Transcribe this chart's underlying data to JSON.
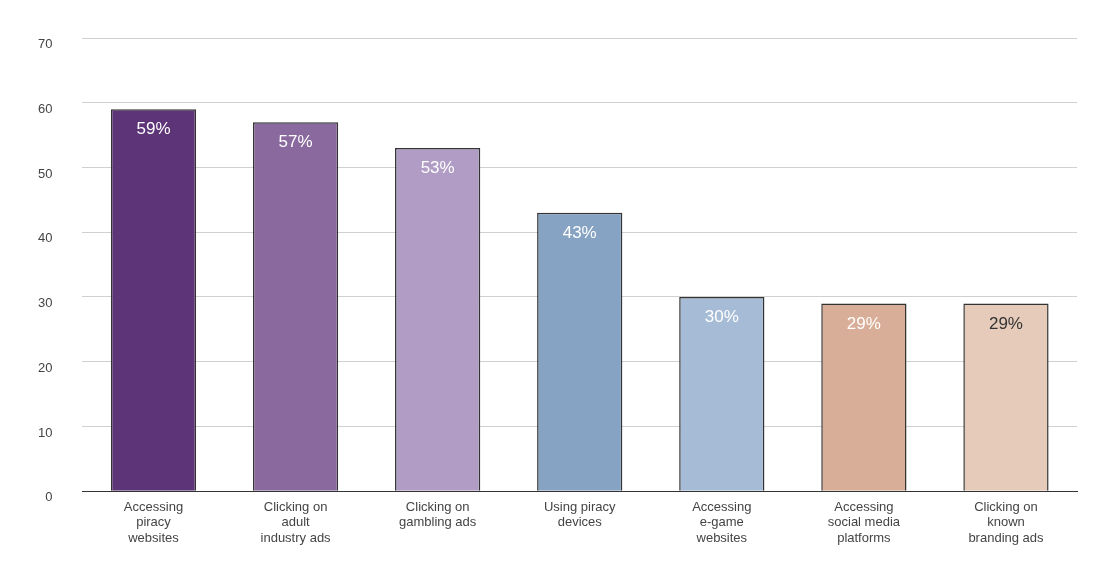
{
  "chart_data": {
    "type": "bar",
    "categories": [
      "Accessing piracy websites",
      "Clicking on adult industry ads",
      "Clicking on gambling ads",
      "Using piracy devices",
      "Accessing e-game websites",
      "Accessing social media platforms",
      "Clicking on known branding ads"
    ],
    "values": [
      59,
      57,
      53,
      43,
      30,
      29,
      29
    ],
    "value_labels": [
      "59%",
      "57%",
      "53%",
      "43%",
      "30%",
      "29%",
      "29%"
    ],
    "colors": [
      "#5e3478",
      "#8a6a9e",
      "#b09cc4",
      "#86a3c3",
      "#a6bcd6",
      "#d9ae98",
      "#e6cbbb"
    ],
    "ylim": [
      0,
      70
    ],
    "yticks": [
      0,
      10,
      20,
      30,
      40,
      50,
      60,
      70
    ],
    "grid": "y",
    "legend": false
  }
}
